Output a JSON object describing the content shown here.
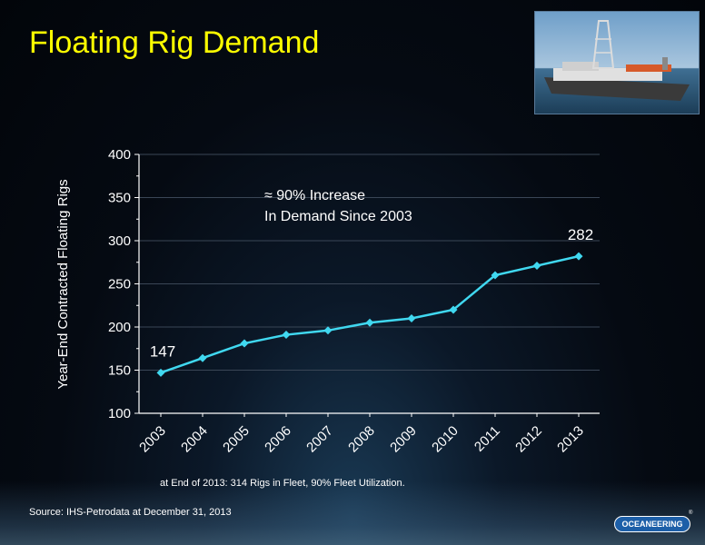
{
  "slide": {
    "title": "Floating Rig Demand",
    "footnote": "at End of 2013:  314 Rigs in Fleet, 90% Fleet Utilization.",
    "source": "Source:  IHS-Petrodata at December 31, 2013",
    "logo_text": "OCEANEERING",
    "logo_mark": "®"
  },
  "chart_data": {
    "type": "line",
    "ylabel": "Year-End Contracted Floating Rigs",
    "xlabel": "",
    "categories": [
      "2003",
      "2004",
      "2005",
      "2006",
      "2007",
      "2008",
      "2009",
      "2010",
      "2011",
      "2012",
      "2013"
    ],
    "series": [
      {
        "values": [
          147,
          164,
          181,
          191,
          196,
          205,
          210,
          220,
          260,
          271,
          282
        ],
        "color": "#40d8f0"
      }
    ],
    "ylim": [
      100,
      400
    ],
    "yticks": [
      100,
      150,
      200,
      250,
      300,
      350,
      400
    ],
    "grid": true,
    "data_labels": [
      {
        "index": 0,
        "text": "147"
      },
      {
        "index": 10,
        "text": "282"
      }
    ],
    "annotation": [
      "≈ 90% Increase",
      "In Demand Since 2003"
    ]
  }
}
